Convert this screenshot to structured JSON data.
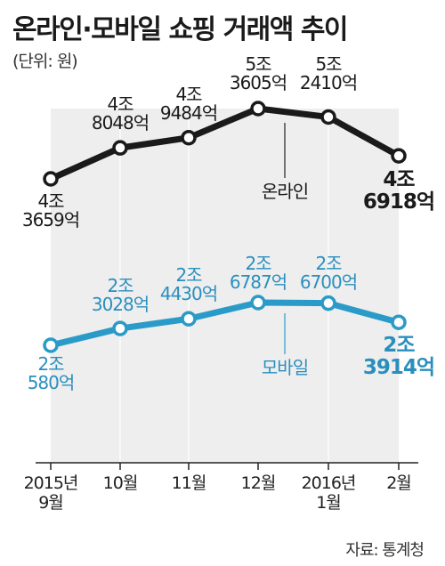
{
  "title": "온라인·모바일 쇼핑 거래액 추이",
  "unit": "(단위: 원)",
  "source": "자료: 통계청",
  "colors": {
    "online": "#1a1a1a",
    "mobile": "#2a9bc8",
    "mobile_label": "#2a8fbd",
    "panel": "#eeeeee",
    "axis": "#222222"
  },
  "chart_data": {
    "type": "line",
    "categories": [
      [
        "2015년",
        "9월"
      ],
      [
        "10월"
      ],
      [
        "11월"
      ],
      [
        "12월"
      ],
      [
        "2016년",
        "1월"
      ],
      [
        "2월"
      ]
    ],
    "series": [
      {
        "name": "온라인",
        "values": [
          43659,
          48048,
          49484,
          53605,
          52410,
          46918
        ],
        "labels": [
          [
            "4조",
            "3659억"
          ],
          [
            "4조",
            "8048억"
          ],
          [
            "4조",
            "9484억"
          ],
          [
            "5조",
            "3605억"
          ],
          [
            "5조",
            "2410억"
          ],
          [
            "4조",
            "6918억"
          ]
        ]
      },
      {
        "name": "모바일",
        "values": [
          20580,
          23028,
          24430,
          26787,
          26700,
          23914
        ],
        "labels": [
          [
            "2조",
            "580억"
          ],
          [
            "2조",
            "3028억"
          ],
          [
            "2조",
            "4430억"
          ],
          [
            "2조",
            "6787억"
          ],
          [
            "2조",
            "6700억"
          ],
          [
            "2조",
            "3914억"
          ]
        ]
      }
    ]
  }
}
